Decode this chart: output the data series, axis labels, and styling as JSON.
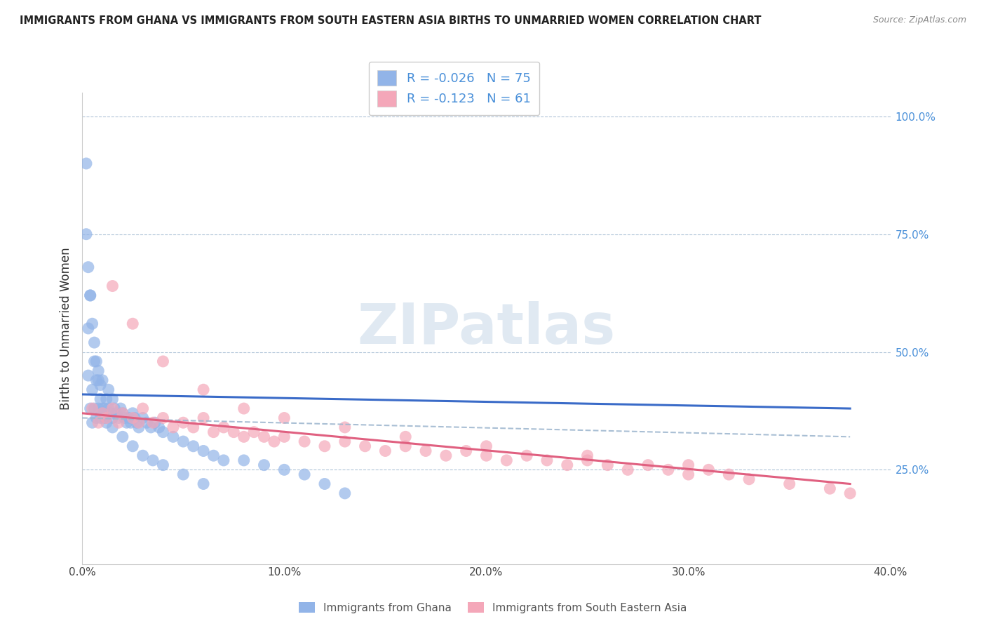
{
  "title": "IMMIGRANTS FROM GHANA VS IMMIGRANTS FROM SOUTH EASTERN ASIA BIRTHS TO UNMARRIED WOMEN CORRELATION CHART",
  "source": "Source: ZipAtlas.com",
  "ylabel": "Births to Unmarried Women",
  "xlabel_ghana": "Immigrants from Ghana",
  "xlabel_sea": "Immigrants from South Eastern Asia",
  "xmin": 0.0,
  "xmax": 0.4,
  "ymin": 0.05,
  "ymax": 1.05,
  "yticks": [
    0.25,
    0.5,
    0.75,
    1.0
  ],
  "ytick_labels": [
    "25.0%",
    "50.0%",
    "75.0%",
    "100.0%"
  ],
  "xticks": [
    0.0,
    0.1,
    0.2,
    0.3,
    0.4
  ],
  "xtick_labels": [
    "0.0%",
    "10.0%",
    "20.0%",
    "30.0%",
    "40.0%"
  ],
  "ghana_R": -0.026,
  "ghana_N": 75,
  "sea_R": -0.123,
  "sea_N": 61,
  "ghana_color": "#92b4e8",
  "sea_color": "#f4a7b9",
  "ghana_line_color": "#3a6bc8",
  "sea_line_color": "#e06080",
  "dash_line_color": "#a0b8d0",
  "watermark_text": "ZIPatlas",
  "watermark_color": "#c8d8e8",
  "ghana_x": [
    0.002,
    0.003,
    0.003,
    0.004,
    0.004,
    0.005,
    0.005,
    0.006,
    0.006,
    0.007,
    0.007,
    0.008,
    0.008,
    0.009,
    0.009,
    0.01,
    0.01,
    0.011,
    0.011,
    0.012,
    0.012,
    0.013,
    0.013,
    0.014,
    0.015,
    0.015,
    0.016,
    0.017,
    0.018,
    0.019,
    0.02,
    0.021,
    0.022,
    0.023,
    0.024,
    0.025,
    0.026,
    0.027,
    0.028,
    0.03,
    0.032,
    0.034,
    0.036,
    0.038,
    0.04,
    0.045,
    0.05,
    0.055,
    0.06,
    0.065,
    0.07,
    0.08,
    0.09,
    0.1,
    0.11,
    0.12,
    0.13,
    0.002,
    0.003,
    0.004,
    0.005,
    0.006,
    0.007,
    0.008,
    0.009,
    0.01,
    0.012,
    0.015,
    0.02,
    0.025,
    0.03,
    0.035,
    0.04,
    0.05,
    0.06
  ],
  "ghana_y": [
    0.9,
    0.55,
    0.45,
    0.62,
    0.38,
    0.35,
    0.42,
    0.38,
    0.48,
    0.36,
    0.44,
    0.38,
    0.46,
    0.36,
    0.43,
    0.37,
    0.44,
    0.38,
    0.36,
    0.4,
    0.35,
    0.38,
    0.42,
    0.37,
    0.36,
    0.4,
    0.38,
    0.37,
    0.36,
    0.38,
    0.37,
    0.36,
    0.35,
    0.36,
    0.35,
    0.37,
    0.36,
    0.35,
    0.34,
    0.36,
    0.35,
    0.34,
    0.35,
    0.34,
    0.33,
    0.32,
    0.31,
    0.3,
    0.29,
    0.28,
    0.27,
    0.27,
    0.26,
    0.25,
    0.24,
    0.22,
    0.2,
    0.75,
    0.68,
    0.62,
    0.56,
    0.52,
    0.48,
    0.44,
    0.4,
    0.38,
    0.36,
    0.34,
    0.32,
    0.3,
    0.28,
    0.27,
    0.26,
    0.24,
    0.22
  ],
  "sea_x": [
    0.005,
    0.008,
    0.01,
    0.012,
    0.015,
    0.018,
    0.02,
    0.025,
    0.028,
    0.03,
    0.035,
    0.04,
    0.045,
    0.05,
    0.055,
    0.06,
    0.065,
    0.07,
    0.075,
    0.08,
    0.085,
    0.09,
    0.095,
    0.1,
    0.11,
    0.12,
    0.13,
    0.14,
    0.15,
    0.16,
    0.17,
    0.18,
    0.19,
    0.2,
    0.21,
    0.22,
    0.23,
    0.24,
    0.25,
    0.26,
    0.27,
    0.28,
    0.29,
    0.3,
    0.31,
    0.32,
    0.33,
    0.35,
    0.37,
    0.38,
    0.015,
    0.025,
    0.04,
    0.06,
    0.08,
    0.1,
    0.13,
    0.16,
    0.2,
    0.25,
    0.3
  ],
  "sea_y": [
    0.38,
    0.35,
    0.37,
    0.36,
    0.38,
    0.35,
    0.37,
    0.36,
    0.35,
    0.38,
    0.35,
    0.36,
    0.34,
    0.35,
    0.34,
    0.36,
    0.33,
    0.34,
    0.33,
    0.32,
    0.33,
    0.32,
    0.31,
    0.32,
    0.31,
    0.3,
    0.31,
    0.3,
    0.29,
    0.3,
    0.29,
    0.28,
    0.29,
    0.28,
    0.27,
    0.28,
    0.27,
    0.26,
    0.27,
    0.26,
    0.25,
    0.26,
    0.25,
    0.24,
    0.25,
    0.24,
    0.23,
    0.22,
    0.21,
    0.2,
    0.64,
    0.56,
    0.48,
    0.42,
    0.38,
    0.36,
    0.34,
    0.32,
    0.3,
    0.28,
    0.26
  ],
  "ghana_trend_x0": 0.0,
  "ghana_trend_x1": 0.38,
  "ghana_trend_y0": 0.41,
  "ghana_trend_y1": 0.38,
  "sea_trend_x0": 0.0,
  "sea_trend_x1": 0.38,
  "sea_trend_y0": 0.37,
  "sea_trend_y1": 0.22,
  "dash_trend_x0": 0.0,
  "dash_trend_x1": 0.38,
  "dash_trend_y0": 0.36,
  "dash_trend_y1": 0.32
}
